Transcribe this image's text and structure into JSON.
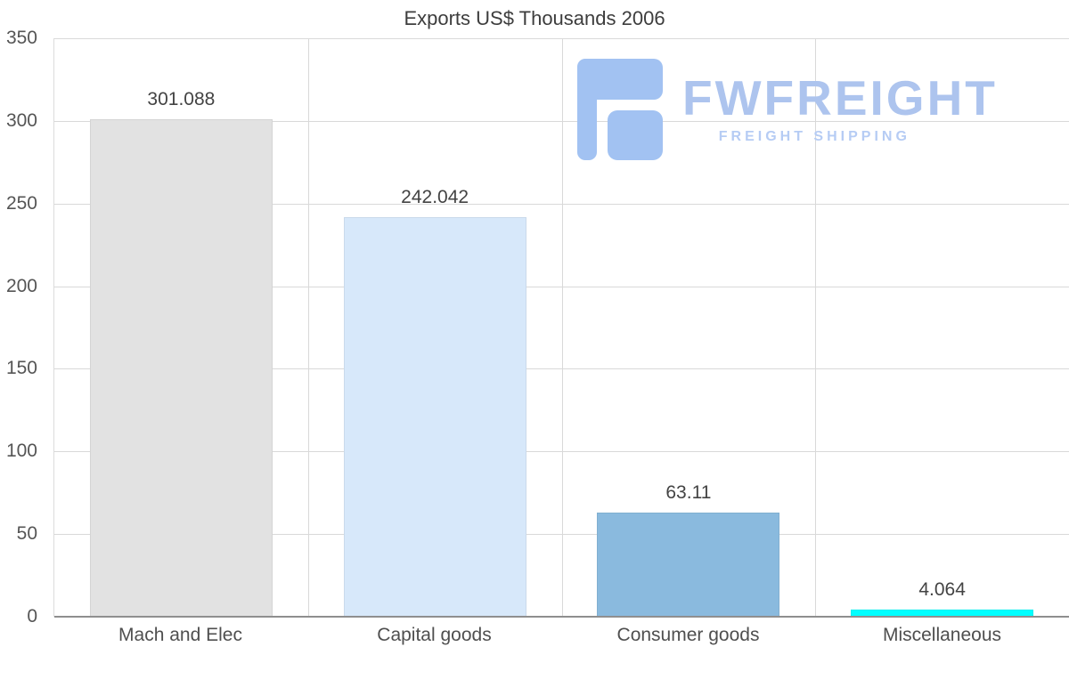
{
  "chart_data": {
    "type": "bar",
    "title": "Exports US$ Thousands 2006",
    "categories": [
      "Mach and Elec",
      "Capital goods",
      "Consumer goods",
      "Miscellaneous"
    ],
    "values": [
      301.088,
      242.042,
      63.11,
      4.064
    ],
    "value_labels": [
      "301.088",
      "242.042",
      "63.11",
      "4.064"
    ],
    "bar_colors": [
      "#e2e2e2",
      "#d7e8fa",
      "#8abade",
      "#00ffff"
    ],
    "ylim": [
      0,
      350
    ],
    "yticks": [
      0,
      50,
      100,
      150,
      200,
      250,
      300,
      350
    ],
    "xlabel": "",
    "ylabel": "",
    "grid": true,
    "legend": false
  },
  "watermark": {
    "brand": "FWFREIGHT",
    "tagline": "FREIGHT SHIPPING",
    "color": "#adc4ee"
  }
}
